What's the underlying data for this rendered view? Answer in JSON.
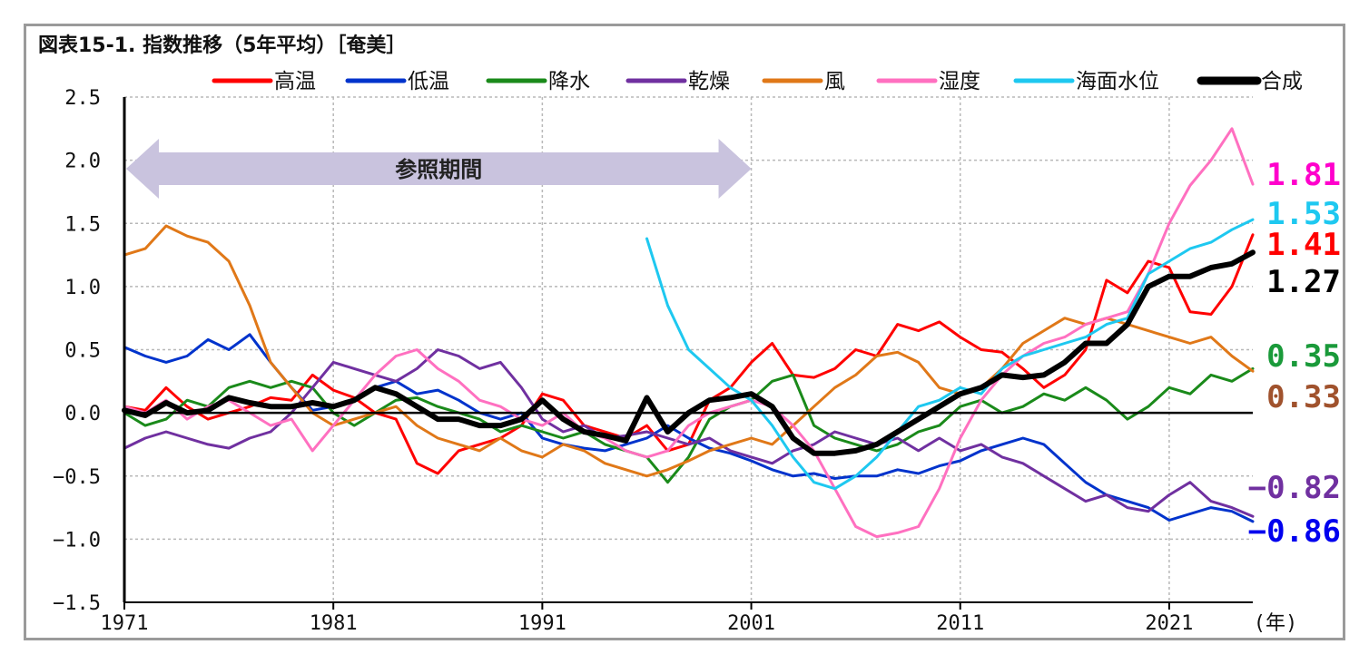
{
  "chart_data": {
    "type": "line",
    "title": "図表15-1. 指数推移（5年平均）［奄美］",
    "xlabel": "(年)",
    "ylabel": "",
    "x_ticks": [
      "1971",
      "1981",
      "1991",
      "2001",
      "2011",
      "2021"
    ],
    "xlim": [
      1971,
      2025
    ],
    "ylim": [
      -1.5,
      2.5
    ],
    "y_ticks": [
      "2.5",
      "2.0",
      "1.5",
      "1.0",
      "0.5",
      "0.0",
      "−0.5",
      "−1.0",
      "−1.5"
    ],
    "y_tick_values": [
      2.5,
      2.0,
      1.5,
      1.0,
      0.5,
      0.0,
      -0.5,
      -1.0,
      -1.5
    ],
    "grid": true,
    "legend_position": "top",
    "reference_period": {
      "label": "参照期間",
      "start": 1971,
      "end": 2001
    },
    "series": [
      {
        "name": "高温",
        "color": "#ff0000",
        "end_label": "1.41",
        "x": [
          1971,
          1972,
          1973,
          1974,
          1975,
          1976,
          1977,
          1978,
          1979,
          1980,
          1981,
          1982,
          1983,
          1984,
          1985,
          1986,
          1987,
          1988,
          1989,
          1990,
          1991,
          1992,
          1993,
          1994,
          1995,
          1996,
          1997,
          1998,
          1999,
          2000,
          2001,
          2002,
          2003,
          2004,
          2005,
          2006,
          2007,
          2008,
          2009,
          2010,
          2011,
          2012,
          2013,
          2014,
          2015,
          2016,
          2017,
          2018,
          2019,
          2020,
          2021,
          2022,
          2023,
          2024,
          2025
        ],
        "y": [
          0.05,
          0.02,
          0.2,
          0.05,
          -0.05,
          0.0,
          0.05,
          0.12,
          0.1,
          0.3,
          0.18,
          0.12,
          0.0,
          -0.05,
          -0.4,
          -0.48,
          -0.3,
          -0.25,
          -0.2,
          -0.1,
          0.15,
          0.1,
          -0.1,
          -0.15,
          -0.2,
          -0.1,
          -0.3,
          -0.25,
          0.1,
          0.2,
          0.4,
          0.55,
          0.3,
          0.28,
          0.35,
          0.5,
          0.45,
          0.7,
          0.65,
          0.72,
          0.6,
          0.5,
          0.48,
          0.35,
          0.2,
          0.3,
          0.5,
          1.05,
          0.95,
          1.2,
          1.15,
          0.8,
          0.78,
          1.0,
          1.41
        ]
      },
      {
        "name": "低温",
        "color": "#0033cc",
        "end_label": "−0.86",
        "x": [
          1971,
          1972,
          1973,
          1974,
          1975,
          1976,
          1977,
          1978,
          1979,
          1980,
          1981,
          1982,
          1983,
          1984,
          1985,
          1986,
          1987,
          1988,
          1989,
          1990,
          1991,
          1992,
          1993,
          1994,
          1995,
          1996,
          1997,
          1998,
          1999,
          2000,
          2001,
          2002,
          2003,
          2004,
          2005,
          2006,
          2007,
          2008,
          2009,
          2010,
          2011,
          2012,
          2013,
          2014,
          2015,
          2016,
          2017,
          2018,
          2019,
          2020,
          2021,
          2022,
          2023,
          2024,
          2025
        ],
        "y": [
          0.52,
          0.45,
          0.4,
          0.45,
          0.58,
          0.5,
          0.62,
          0.4,
          0.2,
          0.02,
          0.05,
          0.1,
          0.2,
          0.25,
          0.15,
          0.18,
          0.1,
          0.0,
          -0.05,
          0.0,
          -0.2,
          -0.25,
          -0.28,
          -0.3,
          -0.25,
          -0.2,
          -0.1,
          -0.2,
          -0.28,
          -0.32,
          -0.38,
          -0.45,
          -0.5,
          -0.48,
          -0.52,
          -0.5,
          -0.5,
          -0.45,
          -0.48,
          -0.42,
          -0.38,
          -0.3,
          -0.25,
          -0.2,
          -0.25,
          -0.4,
          -0.55,
          -0.65,
          -0.7,
          -0.75,
          -0.85,
          -0.8,
          -0.75,
          -0.78,
          -0.86
        ]
      },
      {
        "name": "降水",
        "color": "#1a8a1a",
        "end_label": "0.35",
        "x": [
          1971,
          1972,
          1973,
          1974,
          1975,
          1976,
          1977,
          1978,
          1979,
          1980,
          1981,
          1982,
          1983,
          1984,
          1985,
          1986,
          1987,
          1988,
          1989,
          1990,
          1991,
          1992,
          1993,
          1994,
          1995,
          1996,
          1997,
          1998,
          1999,
          2000,
          2001,
          2002,
          2003,
          2004,
          2005,
          2006,
          2007,
          2008,
          2009,
          2010,
          2011,
          2012,
          2013,
          2014,
          2015,
          2016,
          2017,
          2018,
          2019,
          2020,
          2021,
          2022,
          2023,
          2024,
          2025
        ],
        "y": [
          0.0,
          -0.1,
          -0.05,
          0.1,
          0.05,
          0.2,
          0.25,
          0.2,
          0.25,
          0.2,
          0.0,
          -0.1,
          0.0,
          0.1,
          0.12,
          0.05,
          0.0,
          -0.05,
          -0.15,
          -0.1,
          -0.15,
          -0.2,
          -0.15,
          -0.25,
          -0.3,
          -0.35,
          -0.55,
          -0.35,
          -0.05,
          0.05,
          0.1,
          0.25,
          0.3,
          -0.1,
          -0.2,
          -0.25,
          -0.3,
          -0.25,
          -0.15,
          -0.1,
          0.05,
          0.1,
          0.0,
          0.05,
          0.15,
          0.1,
          0.2,
          0.1,
          -0.05,
          0.05,
          0.2,
          0.15,
          0.3,
          0.25,
          0.35
        ]
      },
      {
        "name": "乾燥",
        "color": "#7030a0",
        "end_label": "−0.82",
        "x": [
          1971,
          1972,
          1973,
          1974,
          1975,
          1976,
          1977,
          1978,
          1979,
          1980,
          1981,
          1982,
          1983,
          1984,
          1985,
          1986,
          1987,
          1988,
          1989,
          1990,
          1991,
          1992,
          1993,
          1994,
          1995,
          1996,
          1997,
          1998,
          1999,
          2000,
          2001,
          2002,
          2003,
          2004,
          2005,
          2006,
          2007,
          2008,
          2009,
          2010,
          2011,
          2012,
          2013,
          2014,
          2015,
          2016,
          2017,
          2018,
          2019,
          2020,
          2021,
          2022,
          2023,
          2024,
          2025
        ],
        "y": [
          -0.28,
          -0.2,
          -0.15,
          -0.2,
          -0.25,
          -0.28,
          -0.2,
          -0.15,
          0.0,
          0.2,
          0.4,
          0.35,
          0.3,
          0.25,
          0.35,
          0.5,
          0.45,
          0.35,
          0.4,
          0.2,
          -0.05,
          -0.15,
          -0.1,
          -0.2,
          -0.18,
          -0.15,
          -0.2,
          -0.25,
          -0.2,
          -0.3,
          -0.35,
          -0.4,
          -0.3,
          -0.25,
          -0.15,
          -0.2,
          -0.25,
          -0.2,
          -0.3,
          -0.2,
          -0.3,
          -0.25,
          -0.35,
          -0.4,
          -0.5,
          -0.6,
          -0.7,
          -0.65,
          -0.75,
          -0.78,
          -0.65,
          -0.55,
          -0.7,
          -0.75,
          -0.82
        ]
      },
      {
        "name": "風",
        "color": "#e07818",
        "end_label": "0.33",
        "x": [
          1971,
          1972,
          1973,
          1974,
          1975,
          1976,
          1977,
          1978,
          1979,
          1980,
          1981,
          1982,
          1983,
          1984,
          1985,
          1986,
          1987,
          1988,
          1989,
          1990,
          1991,
          1992,
          1993,
          1994,
          1995,
          1996,
          1997,
          1998,
          1999,
          2000,
          2001,
          2002,
          2003,
          2004,
          2005,
          2006,
          2007,
          2008,
          2009,
          2010,
          2011,
          2012,
          2013,
          2014,
          2015,
          2016,
          2017,
          2018,
          2019,
          2020,
          2021,
          2022,
          2023,
          2024,
          2025
        ],
        "y": [
          1.25,
          1.3,
          1.48,
          1.4,
          1.35,
          1.2,
          0.85,
          0.4,
          0.2,
          0.0,
          -0.1,
          -0.05,
          0.0,
          0.05,
          -0.1,
          -0.2,
          -0.25,
          -0.3,
          -0.2,
          -0.3,
          -0.35,
          -0.25,
          -0.3,
          -0.4,
          -0.45,
          -0.5,
          -0.45,
          -0.38,
          -0.3,
          -0.25,
          -0.2,
          -0.25,
          -0.1,
          0.05,
          0.2,
          0.3,
          0.45,
          0.48,
          0.4,
          0.2,
          0.15,
          0.2,
          0.35,
          0.55,
          0.65,
          0.75,
          0.7,
          0.75,
          0.7,
          0.65,
          0.6,
          0.55,
          0.6,
          0.45,
          0.33
        ]
      },
      {
        "name": "湿度",
        "color": "#ff70c0",
        "end_label": "1.81",
        "x": [
          1971,
          1972,
          1973,
          1974,
          1975,
          1976,
          1977,
          1978,
          1979,
          1980,
          1981,
          1982,
          1983,
          1984,
          1985,
          1986,
          1987,
          1988,
          1989,
          1990,
          1991,
          1992,
          1993,
          1994,
          1995,
          1996,
          1997,
          1998,
          1999,
          2000,
          2001,
          2002,
          2003,
          2004,
          2005,
          2006,
          2007,
          2008,
          2009,
          2010,
          2011,
          2012,
          2013,
          2014,
          2015,
          2016,
          2017,
          2018,
          2019,
          2020,
          2021,
          2022,
          2023,
          2024,
          2025
        ],
        "y": [
          0.05,
          0.0,
          0.1,
          -0.05,
          0.05,
          0.1,
          0.0,
          -0.1,
          -0.05,
          -0.3,
          -0.1,
          0.1,
          0.3,
          0.45,
          0.5,
          0.35,
          0.25,
          0.1,
          0.05,
          -0.05,
          -0.1,
          0.0,
          -0.15,
          -0.2,
          -0.3,
          -0.35,
          -0.3,
          -0.1,
          0.0,
          0.05,
          0.1,
          0.05,
          -0.1,
          -0.3,
          -0.6,
          -0.9,
          -0.98,
          -0.95,
          -0.9,
          -0.6,
          -0.2,
          0.1,
          0.3,
          0.45,
          0.55,
          0.6,
          0.7,
          0.75,
          0.8,
          1.1,
          1.5,
          1.8,
          2.0,
          2.25,
          1.81
        ]
      },
      {
        "name": "海面水位",
        "color": "#1ec8f0",
        "end_label": "1.53",
        "x": [
          1996,
          1997,
          1998,
          1999,
          2000,
          2001,
          2002,
          2003,
          2004,
          2005,
          2006,
          2007,
          2008,
          2009,
          2010,
          2011,
          2012,
          2013,
          2014,
          2015,
          2016,
          2017,
          2018,
          2019,
          2020,
          2021,
          2022,
          2023,
          2024,
          2025
        ],
        "y": [
          1.38,
          0.85,
          0.5,
          0.35,
          0.2,
          0.1,
          -0.1,
          -0.35,
          -0.55,
          -0.6,
          -0.5,
          -0.35,
          -0.15,
          0.05,
          0.1,
          0.2,
          0.15,
          0.35,
          0.45,
          0.5,
          0.55,
          0.6,
          0.7,
          0.75,
          1.1,
          1.2,
          1.3,
          1.35,
          1.45,
          1.53
        ]
      },
      {
        "name": "合成",
        "color": "#000000",
        "end_label": "1.27",
        "x": [
          1971,
          1972,
          1973,
          1974,
          1975,
          1976,
          1977,
          1978,
          1979,
          1980,
          1981,
          1982,
          1983,
          1984,
          1985,
          1986,
          1987,
          1988,
          1989,
          1990,
          1991,
          1992,
          1993,
          1994,
          1995,
          1996,
          1997,
          1998,
          1999,
          2000,
          2001,
          2002,
          2003,
          2004,
          2005,
          2006,
          2007,
          2008,
          2009,
          2010,
          2011,
          2012,
          2013,
          2014,
          2015,
          2016,
          2017,
          2018,
          2019,
          2020,
          2021,
          2022,
          2023,
          2024,
          2025
        ],
        "y": [
          0.02,
          -0.02,
          0.08,
          0.0,
          0.02,
          0.12,
          0.08,
          0.05,
          0.05,
          0.08,
          0.05,
          0.1,
          0.2,
          0.15,
          0.05,
          -0.05,
          -0.05,
          -0.1,
          -0.1,
          -0.05,
          0.1,
          -0.05,
          -0.15,
          -0.18,
          -0.22,
          0.12,
          -0.15,
          0.0,
          0.1,
          0.12,
          0.15,
          0.05,
          -0.2,
          -0.32,
          -0.32,
          -0.3,
          -0.25,
          -0.15,
          -0.05,
          0.05,
          0.15,
          0.2,
          0.3,
          0.28,
          0.3,
          0.4,
          0.55,
          0.55,
          0.7,
          1.0,
          1.08,
          1.08,
          1.15,
          1.18,
          1.27
        ]
      }
    ]
  }
}
